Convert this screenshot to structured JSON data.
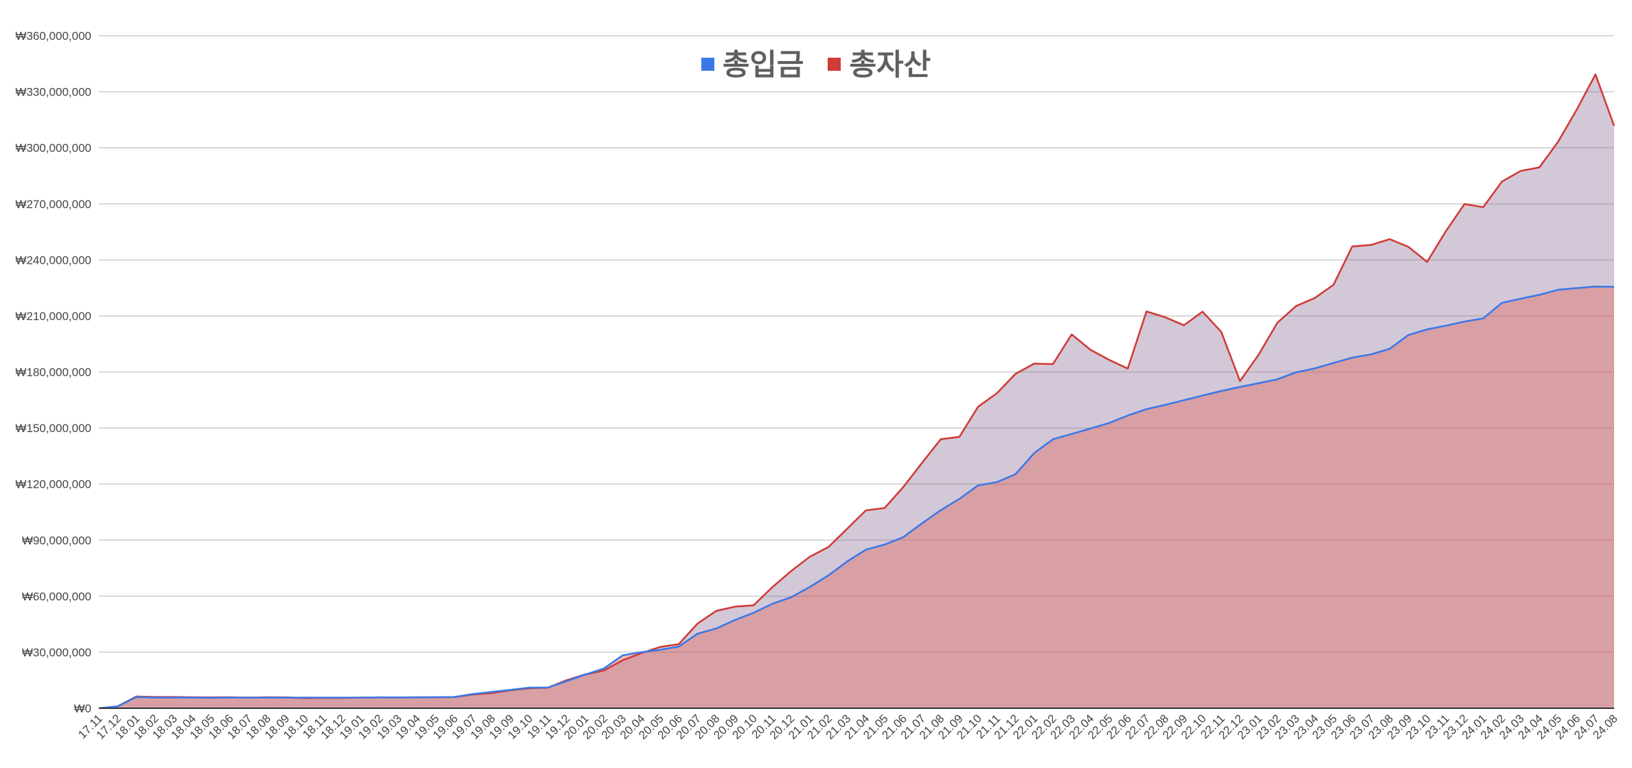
{
  "legend": {
    "items": [
      {
        "label": "총입금",
        "color": "#3b78e7"
      },
      {
        "label": "총자산",
        "color": "#d03b36"
      }
    ]
  },
  "chart_data": {
    "type": "area",
    "title": "",
    "xlabel": "",
    "ylabel": "",
    "ylim": [
      0,
      360000000
    ],
    "yticks": [
      0,
      30000000,
      60000000,
      90000000,
      120000000,
      150000000,
      180000000,
      210000000,
      240000000,
      270000000,
      300000000,
      330000000,
      360000000
    ],
    "ytick_labels": [
      "₩0",
      "₩30,000,000",
      "₩60,000,000",
      "₩90,000,000",
      "₩120,000,000",
      "₩150,000,000",
      "₩180,000,000",
      "₩210,000,000",
      "₩240,000,000",
      "₩270,000,000",
      "₩300,000,000",
      "₩330,000,000",
      "₩360,000,000"
    ],
    "grid": true,
    "legend_position": "top",
    "categories": [
      "17.11",
      "17.12",
      "18.01",
      "18.02",
      "18.03",
      "18.04",
      "18.05",
      "18.06",
      "18.07",
      "18.08",
      "18.09",
      "18.10",
      "18.11",
      "18.12",
      "19.01",
      "19.02",
      "19.03",
      "19.04",
      "19.05",
      "19.06",
      "19.07",
      "19.08",
      "19.09",
      "19.10",
      "19.11",
      "19.12",
      "20.01",
      "20.02",
      "20.03",
      "20.04",
      "20.05",
      "20.06",
      "20.07",
      "20.08",
      "20.09",
      "20.10",
      "20.11",
      "20.12",
      "21.01",
      "21.02",
      "21.03",
      "21.04",
      "21.05",
      "21.06",
      "21.07",
      "21.08",
      "21.09",
      "21.10",
      "21.11",
      "21.12",
      "22.01",
      "22.02",
      "22.03",
      "22.04",
      "22.05",
      "22.06",
      "22.07",
      "22.08",
      "22.09",
      "22.10",
      "22.11",
      "22.12",
      "23.01",
      "23.02",
      "23.03",
      "23.04",
      "23.05",
      "23.06",
      "23.07",
      "23.08",
      "23.09",
      "23.10",
      "23.11",
      "23.12",
      "24.01",
      "24.02",
      "24.03",
      "24.04",
      "24.05",
      "24.06",
      "24.07",
      "24.08"
    ],
    "series": [
      {
        "name": "총입금",
        "color": "#3b78e7",
        "values": [
          0,
          1000000,
          6000000,
          5700000,
          5700000,
          5700000,
          5600000,
          5700000,
          5700000,
          5700000,
          5700000,
          5700000,
          5700000,
          5700000,
          5700000,
          5800000,
          5800000,
          5800000,
          5900000,
          6000000,
          7600000,
          8700000,
          9800000,
          11000000,
          11100000,
          14500000,
          18000000,
          21300000,
          28300000,
          30000000,
          31300000,
          33000000,
          39900000,
          42700000,
          47200000,
          51100000,
          55900000,
          59400000,
          64900000,
          71100000,
          78600000,
          84900000,
          87600000,
          91600000,
          99000000,
          106000000,
          112100000,
          119300000,
          121000000,
          125300000,
          136600000,
          144000000,
          146800000,
          149700000,
          152700000,
          156700000,
          160100000,
          162400000,
          164900000,
          167400000,
          169800000,
          172000000,
          174000000,
          176100000,
          179800000,
          181900000,
          184800000,
          187700000,
          189400000,
          192400000,
          199800000,
          202800000,
          204800000,
          207000000,
          208700000,
          217000000,
          219200000,
          221300000,
          224000000,
          224900000,
          225700000,
          225600000
        ]
      },
      {
        "name": "총자산",
        "color": "#d03b36",
        "values": [
          0,
          1000000,
          6300000,
          6000000,
          6000000,
          5900000,
          5800000,
          5900000,
          5700000,
          5900000,
          5800000,
          5400000,
          5600000,
          5500000,
          5700000,
          5800000,
          5700000,
          5900000,
          5900000,
          6000000,
          7300000,
          8100000,
          9600000,
          10700000,
          11000000,
          15000000,
          18100000,
          20200000,
          25700000,
          29500000,
          32800000,
          34300000,
          45300000,
          52100000,
          54400000,
          55100000,
          64800000,
          73400000,
          81100000,
          86300000,
          96100000,
          105900000,
          107200000,
          118400000,
          131300000,
          144000000,
          145300000,
          161400000,
          168600000,
          179000000,
          184500000,
          184200000,
          200100000,
          191900000,
          186500000,
          181800000,
          212400000,
          209300000,
          205000000,
          212300000,
          201400000,
          175100000,
          189300000,
          206400000,
          215300000,
          219600000,
          226700000,
          247200000,
          248000000,
          251100000,
          247000000,
          238900000,
          255300000,
          269900000,
          268200000,
          281900000,
          287600000,
          289500000,
          303200000,
          320400000,
          339300000,
          311700000
        ]
      }
    ]
  }
}
